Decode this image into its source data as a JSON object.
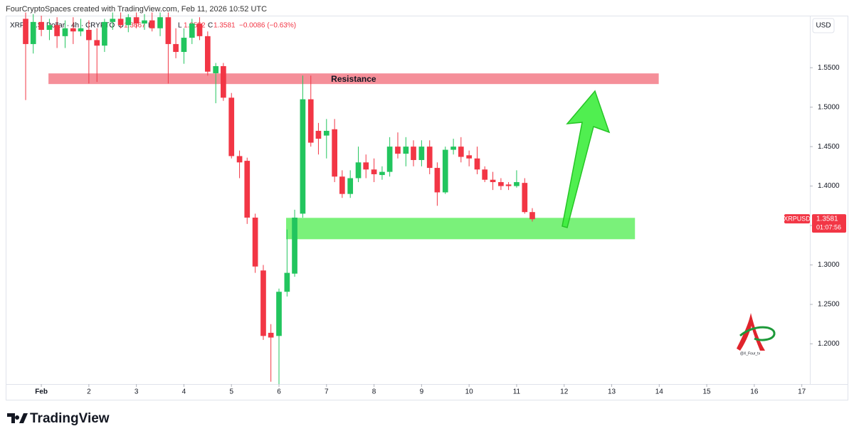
{
  "chart_data": {
    "type": "candlestick",
    "header": "FourCryptoSpaces created with TradingView.com, Feb 11, 2026 10:52 UTC",
    "symbol_title": "XRP / U.S. Dollar · 4h · CRYPTO",
    "ohlc_legend": [
      {
        "key": "O",
        "value": 1.3667
      },
      {
        "key": "H"
      },
      {
        "key": "L",
        "value": 1.3552
      },
      {
        "key": "C",
        "value": 1.3581
      }
    ],
    "change": "−0.0086 (−0.63%)",
    "currency": "USD",
    "up_color": "#22c55e",
    "down_color": "#f23645",
    "x": [
      0.67,
      0.83,
      1.0,
      1.17,
      1.33,
      1.5,
      1.67,
      1.83,
      2.0,
      2.17,
      2.33,
      2.5,
      2.67,
      2.83,
      3.0,
      3.17,
      3.33,
      3.5,
      3.67,
      3.83,
      4.0,
      4.17,
      4.33,
      4.5,
      4.67,
      4.83,
      5.0,
      5.17,
      5.33,
      5.5,
      5.67,
      5.83,
      6.0,
      6.17,
      6.33,
      6.5,
      6.67,
      6.83,
      7.0,
      7.17,
      7.33,
      7.5,
      7.67,
      7.83,
      8.0,
      8.17,
      8.33,
      8.5,
      8.67,
      8.83,
      9.0,
      9.17,
      9.33,
      9.5,
      9.67,
      9.83,
      10.0,
      10.17,
      10.33,
      10.5,
      10.67,
      10.83,
      11.0,
      11.17,
      11.33
    ],
    "open": [
      1.612,
      1.58,
      1.608,
      1.598,
      1.604,
      1.59,
      1.6,
      1.596,
      1.598,
      1.585,
      1.578,
      1.608,
      1.612,
      1.604,
      1.614,
      1.606,
      1.61,
      1.6,
      1.614,
      1.58,
      1.57,
      1.588,
      1.606,
      1.59,
      1.543,
      1.552,
      1.512,
      1.438,
      1.432,
      1.36,
      1.293,
      1.214,
      1.21,
      1.266,
      1.289,
      1.365,
      1.51,
      1.47,
      1.464,
      1.472,
      1.412,
      1.39,
      1.41,
      1.43,
      1.421,
      1.414,
      1.418,
      1.45,
      1.441,
      1.45,
      1.433,
      1.45,
      1.423,
      1.392,
      1.446,
      1.45,
      1.439,
      1.435,
      1.421,
      1.408,
      1.405,
      1.402,
      1.4,
      1.404,
      1.367
    ],
    "high": [
      1.62,
      1.618,
      1.616,
      1.612,
      1.614,
      1.61,
      1.614,
      1.612,
      1.61,
      1.6,
      1.612,
      1.62,
      1.62,
      1.618,
      1.62,
      1.618,
      1.62,
      1.62,
      1.62,
      1.6,
      1.6,
      1.612,
      1.614,
      1.596,
      1.556,
      1.556,
      1.518,
      1.445,
      1.436,
      1.365,
      1.3,
      1.225,
      1.27,
      1.345,
      1.37,
      1.54,
      1.54,
      1.48,
      1.485,
      1.485,
      1.42,
      1.42,
      1.45,
      1.44,
      1.435,
      1.425,
      1.462,
      1.468,
      1.462,
      1.458,
      1.458,
      1.458,
      1.43,
      1.45,
      1.46,
      1.462,
      1.445,
      1.45,
      1.425,
      1.418,
      1.41,
      1.405,
      1.42,
      1.41,
      1.372
    ],
    "low": [
      1.509,
      1.568,
      1.59,
      1.585,
      1.575,
      1.575,
      1.58,
      1.59,
      1.53,
      1.532,
      1.57,
      1.598,
      1.6,
      1.595,
      1.6,
      1.598,
      1.596,
      1.59,
      1.53,
      1.562,
      1.555,
      1.58,
      1.585,
      1.54,
      1.505,
      1.508,
      1.435,
      1.41,
      1.352,
      1.29,
      1.205,
      1.152,
      1.149,
      1.26,
      1.285,
      1.36,
      1.45,
      1.44,
      1.435,
      1.405,
      1.385,
      1.385,
      1.405,
      1.41,
      1.405,
      1.408,
      1.412,
      1.435,
      1.425,
      1.425,
      1.425,
      1.415,
      1.375,
      1.39,
      1.44,
      1.43,
      1.425,
      1.415,
      1.405,
      1.395,
      1.395,
      1.395,
      1.398,
      1.365,
      1.355
    ],
    "close": [
      1.58,
      1.608,
      1.598,
      1.604,
      1.59,
      1.6,
      1.596,
      1.6,
      1.585,
      1.578,
      1.608,
      1.612,
      1.604,
      1.614,
      1.606,
      1.61,
      1.6,
      1.614,
      1.58,
      1.57,
      1.588,
      1.606,
      1.59,
      1.545,
      1.552,
      1.512,
      1.438,
      1.43,
      1.36,
      1.298,
      1.21,
      1.208,
      1.266,
      1.29,
      1.36,
      1.51,
      1.455,
      1.46,
      1.47,
      1.412,
      1.39,
      1.41,
      1.43,
      1.421,
      1.415,
      1.418,
      1.45,
      1.441,
      1.45,
      1.433,
      1.45,
      1.423,
      1.392,
      1.446,
      1.45,
      1.437,
      1.435,
      1.421,
      1.408,
      1.405,
      1.4,
      1.4,
      1.405,
      1.367,
      1.358
    ],
    "xlim": [
      0.28,
      17.17
    ],
    "ylim": [
      1.149,
      1.616
    ],
    "xticks": [
      {
        "value": 1,
        "label": "Feb"
      },
      2,
      3,
      4,
      5,
      6,
      7,
      8,
      9,
      10,
      11,
      12,
      13,
      14,
      15,
      16,
      17
    ],
    "yticks": [
      {
        "value": 1.2,
        "label": "1.2000"
      },
      {
        "value": 1.25,
        "label": "1.2500"
      },
      {
        "value": 1.3,
        "label": "1.3000"
      },
      {
        "value": 1.35,
        "label": "1.3500"
      },
      {
        "value": 1.4,
        "label": "1.4000"
      },
      {
        "value": 1.45,
        "label": "1.4500"
      },
      {
        "value": 1.5,
        "label": "1.5000"
      },
      {
        "value": 1.55,
        "label": "1.5500"
      }
    ],
    "zones": [
      {
        "label": "Resistance",
        "x": [
          1.15,
          13.99
        ],
        "y": [
          1.5293,
          1.5428
        ],
        "color": "#f4838e"
      },
      {
        "x": [
          6.15,
          13.49
        ],
        "y": [
          1.3326,
          1.3597
        ],
        "color": "#6cf06c"
      }
    ],
    "last_price": {
      "symbol": "XRPUSD",
      "value": 1.3581,
      "countdown": "01:07:56"
    },
    "watermark": "@X_Four_tv",
    "brand": "TradingView"
  }
}
